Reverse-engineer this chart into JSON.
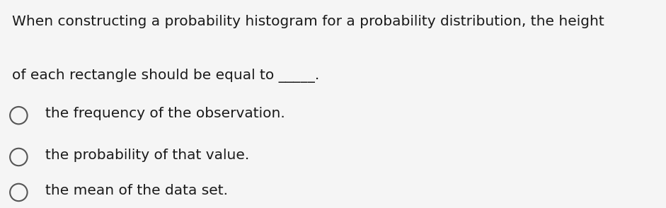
{
  "background_color": "#f5f5f5",
  "question_line1": "When constructing a probability histogram for a probability distribution, the height",
  "question_line2": "of each rectangle should be equal to _____.",
  "options": [
    "the frequency of the observation.",
    "the probability of that value.",
    "the mean of the data set."
  ],
  "question_fontsize": 14.5,
  "option_fontsize": 14.5,
  "text_color": "#1a1a1a",
  "circle_color": "#555555",
  "circle_linewidth": 1.5,
  "underline_color": "#cc0000"
}
